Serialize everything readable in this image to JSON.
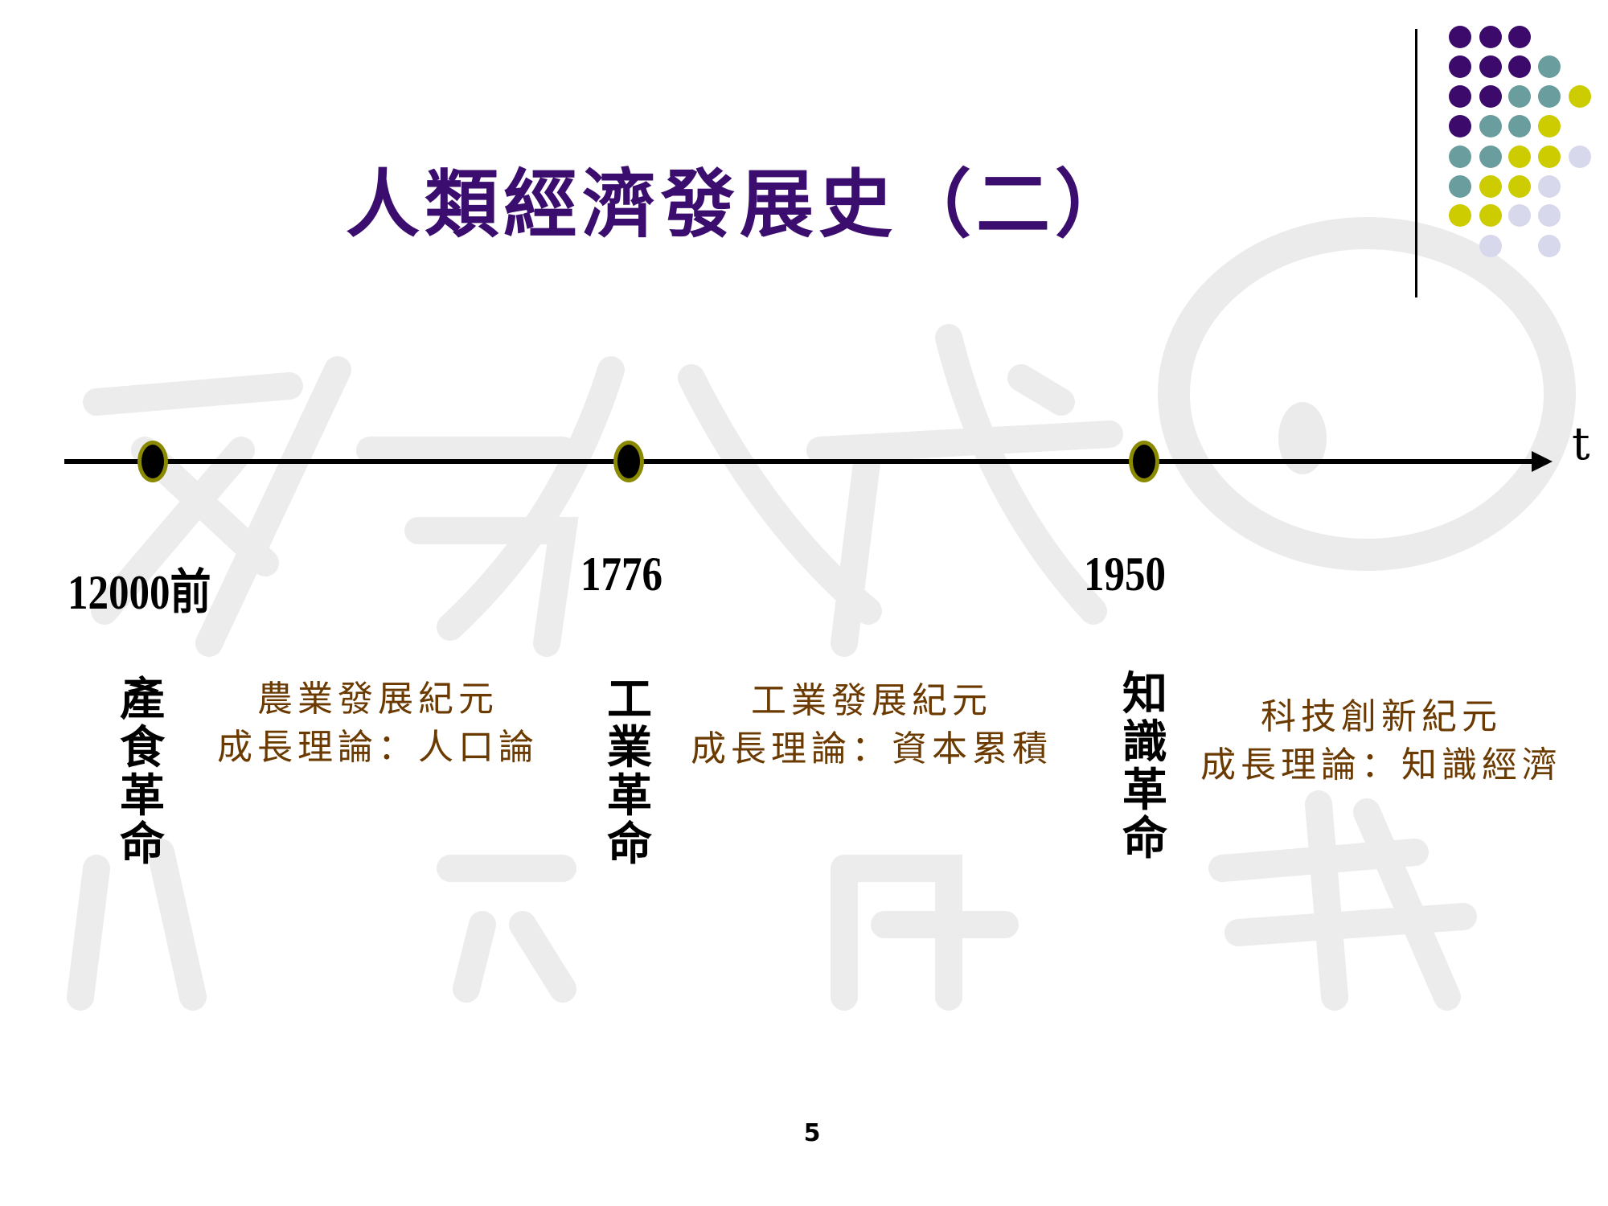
{
  "slide": {
    "title": "人類經濟發展史（二）",
    "page_number": "5",
    "watermark": [
      "豬",
      "八",
      "戒",
      "的",
      "講",
      "我"
    ],
    "colors": {
      "title": "#3b0d6e",
      "era_text": "#6b3a00",
      "marker_ring": "#8a8a00",
      "dot_purple": "#3b0a6b",
      "dot_teal": "#6a9e9e",
      "dot_yellow": "#cccc00",
      "dot_lavender": "#d8d8ec"
    }
  },
  "timeline": {
    "axis_label": "t",
    "events": [
      {
        "year": "12000前",
        "revolution": [
          "產",
          "食",
          "革",
          "命"
        ],
        "era": "農業發展紀元",
        "theory": "成長理論：人口論"
      },
      {
        "year": "1776",
        "revolution": [
          "工",
          "業",
          "革",
          "命"
        ],
        "era": "工業發展紀元",
        "theory": "成長理論：資本累積"
      },
      {
        "year": "1950",
        "revolution": [
          "知",
          "識",
          "革",
          "命"
        ],
        "era": "科技創新紀元",
        "theory": "成長理論：知識經濟"
      }
    ]
  }
}
